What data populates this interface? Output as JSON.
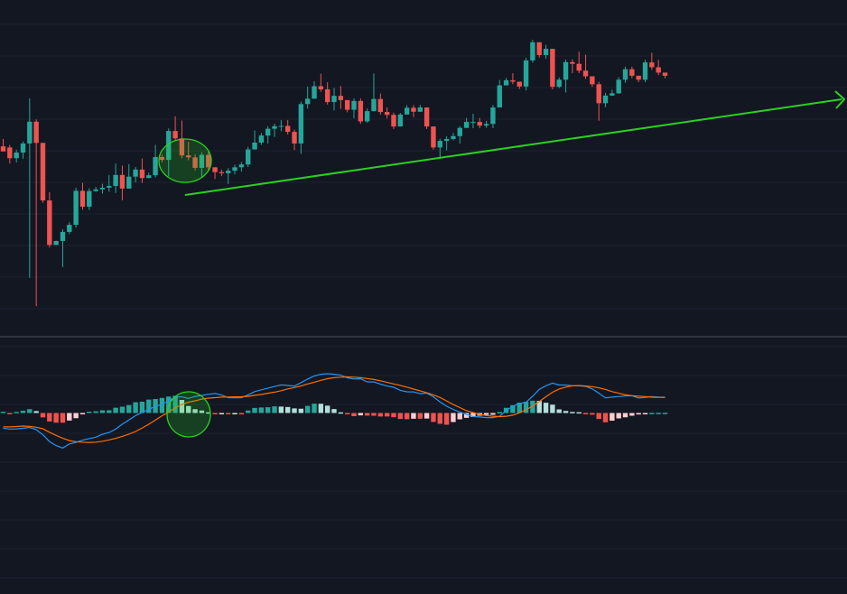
{
  "theme": {
    "background": "#131722",
    "grid": "#1e2230",
    "up": "#26a69a",
    "down": "#ef5350",
    "hist_up_strong": "#26a69a",
    "hist_up_weak": "#b2dfdb",
    "hist_down_strong": "#ef5350",
    "hist_down_weak": "#ffcdd2",
    "macd_line": "#2196f3",
    "signal_line": "#ff6d00",
    "annotation": "#2ad11f",
    "divider": "#4a4f5c"
  },
  "chart_data": [
    {
      "type": "candlestick",
      "panel": "price",
      "grid": true,
      "ylim": [
        0,
        100
      ],
      "candles": [
        [
          57.3,
          55.5,
          59.9,
          56.9
        ],
        [
          56.9,
          53.1,
          57.8,
          51.2
        ],
        [
          53.1,
          55.1,
          56.1,
          51.6
        ],
        [
          55.1,
          58.3,
          59.0,
          52.9
        ],
        [
          58.3,
          66.0,
          74.2,
          10.9
        ],
        [
          66.0,
          58.5,
          66.8,
          0.9
        ],
        [
          58.5,
          38.2,
          40.0,
          37.4
        ],
        [
          38.2,
          22.5,
          41.1,
          21.6
        ],
        [
          22.5,
          23.9,
          24.0,
          23.0
        ],
        [
          23.9,
          27.1,
          28.0,
          14.7
        ],
        [
          27.1,
          29.6,
          30.5,
          26.3
        ],
        [
          29.6,
          41.6,
          42.7,
          28.6
        ],
        [
          41.6,
          36.0,
          44.4,
          34.9
        ],
        [
          36.0,
          41.5,
          42.5,
          34.9
        ],
        [
          41.5,
          42.1,
          43.0,
          41.2
        ],
        [
          42.1,
          42.7,
          44.1,
          40.6
        ],
        [
          42.7,
          43.3,
          47.2,
          41.3
        ],
        [
          43.3,
          47.2,
          51.2,
          40.8
        ],
        [
          47.2,
          42.4,
          50.5,
          38.3
        ],
        [
          42.4,
          46.6,
          51.0,
          45.7
        ],
        [
          46.6,
          49.1,
          50.0,
          44.6
        ],
        [
          49.1,
          46.1,
          53.0,
          44.4
        ],
        [
          46.1,
          47.1,
          48.0,
          46.2
        ],
        [
          47.1,
          53.5,
          57.8,
          46.3
        ],
        [
          53.5,
          52.5,
          54.4,
          51.6
        ],
        [
          52.5,
          62.7,
          63.6,
          46.7
        ],
        [
          62.7,
          60.1,
          67.9,
          59.1
        ],
        [
          60.1,
          54.1,
          66.4,
          53.1
        ],
        [
          54.1,
          53.4,
          58.9,
          52.4
        ],
        [
          53.4,
          49.7,
          54.5,
          48.8
        ],
        [
          49.7,
          54.3,
          55.2,
          46.4
        ],
        [
          54.3,
          49.9,
          55.4,
          48.7
        ],
        [
          49.9,
          48.2,
          49.1,
          45.8
        ],
        [
          48.2,
          47.8,
          49.1,
          46.8
        ],
        [
          47.8,
          48.7,
          49.6,
          44.0
        ],
        [
          48.7,
          49.9,
          50.8,
          47.4
        ],
        [
          49.9,
          50.9,
          51.8,
          48.4
        ],
        [
          50.9,
          56.2,
          57.1,
          50.0
        ],
        [
          56.2,
          58.6,
          62.9,
          57.4
        ],
        [
          58.6,
          61.1,
          62.0,
          57.8
        ],
        [
          61.1,
          63.5,
          64.4,
          58.3
        ],
        [
          63.5,
          64.4,
          65.3,
          60.6
        ],
        [
          64.4,
          64.5,
          66.6,
          62.6
        ],
        [
          64.5,
          62.4,
          66.6,
          61.5
        ],
        [
          62.4,
          58.3,
          63.2,
          56.0
        ],
        [
          58.3,
          72.2,
          73.1,
          54.6
        ],
        [
          72.2,
          74.1,
          78.4,
          70.6
        ],
        [
          74.1,
          78.5,
          80.2,
          77.3
        ],
        [
          78.5,
          77.4,
          82.9,
          76.5
        ],
        [
          77.4,
          72.9,
          79.9,
          72.0
        ],
        [
          72.9,
          75.1,
          77.9,
          70.0
        ],
        [
          75.1,
          73.6,
          78.6,
          70.5
        ],
        [
          73.6,
          70.2,
          73.6,
          69.3
        ],
        [
          70.2,
          73.3,
          74.2,
          67.2
        ],
        [
          73.3,
          66.1,
          74.2,
          65.2
        ],
        [
          66.1,
          69.7,
          70.6,
          65.6
        ],
        [
          69.7,
          74.0,
          83.0,
          69.6
        ],
        [
          74.0,
          69.4,
          75.9,
          68.5
        ],
        [
          69.4,
          68.4,
          71.0,
          67.1
        ],
        [
          68.4,
          64.3,
          69.2,
          63.4
        ],
        [
          64.3,
          68.5,
          69.1,
          67.7
        ],
        [
          68.5,
          70.9,
          71.8,
          69.7
        ],
        [
          70.9,
          69.5,
          71.8,
          67.6
        ],
        [
          69.5,
          71.0,
          71.9,
          70.1
        ],
        [
          71.0,
          64.3,
          71.0,
          63.4
        ],
        [
          64.3,
          56.9,
          58.0,
          56.1
        ],
        [
          56.9,
          59.2,
          60.0,
          53.1
        ],
        [
          59.2,
          59.9,
          60.8,
          55.9
        ],
        [
          59.9,
          60.9,
          62.0,
          59.4
        ],
        [
          60.9,
          63.8,
          64.4,
          58.3
        ],
        [
          63.8,
          65.9,
          67.3,
          65.3
        ],
        [
          65.9,
          65.9,
          68.8,
          63.7
        ],
        [
          65.9,
          64.6,
          67.3,
          63.7
        ],
        [
          64.6,
          65.2,
          66.3,
          63.8
        ],
        [
          65.2,
          71.0,
          71.9,
          63.7
        ],
        [
          71.0,
          78.8,
          80.7,
          71.1
        ],
        [
          78.8,
          80.6,
          81.4,
          79.2
        ],
        [
          80.6,
          80.1,
          83.1,
          79.2
        ],
        [
          80.1,
          78.4,
          79.3,
          77.5
        ],
        [
          78.4,
          87.6,
          88.5,
          77.0
        ],
        [
          87.6,
          94.0,
          94.9,
          86.8
        ],
        [
          94.0,
          89.5,
          93.0,
          88.6
        ],
        [
          89.5,
          91.7,
          93.1,
          88.2
        ],
        [
          91.7,
          78.3,
          79.2,
          77.4
        ],
        [
          78.3,
          80.8,
          81.6,
          77.8
        ],
        [
          80.8,
          87.0,
          87.9,
          76.3
        ],
        [
          87.0,
          86.4,
          88.0,
          83.1
        ],
        [
          86.4,
          84.0,
          90.7,
          83.1
        ],
        [
          84.0,
          82.0,
          89.6,
          81.1
        ],
        [
          82.0,
          79.2,
          80.1,
          78.3
        ],
        [
          79.2,
          72.5,
          80.1,
          66.3
        ],
        [
          72.5,
          75.2,
          76.1,
          71.1
        ],
        [
          75.2,
          76.0,
          77.3,
          75.1
        ],
        [
          76.0,
          80.8,
          81.7,
          75.8
        ],
        [
          80.8,
          84.5,
          85.4,
          79.7
        ],
        [
          84.5,
          82.2,
          85.4,
          81.3
        ],
        [
          82.2,
          80.8,
          80.7,
          79.9
        ],
        [
          80.8,
          86.9,
          87.8,
          79.9
        ],
        [
          86.9,
          85.2,
          90.3,
          84.3
        ],
        [
          85.2,
          83.3,
          87.8,
          82.4
        ],
        [
          83.3,
          82.2,
          83.1,
          81.3
        ]
      ]
    },
    {
      "type": "macd",
      "panel": "indicator",
      "grid": true,
      "ylim": [
        -50,
        50
      ],
      "macd": [
        -13.5,
        -14.2,
        -14.1,
        -13.5,
        -12.8,
        -14.7,
        -19.3,
        -25.3,
        -28.9,
        -31.0,
        -27.4,
        -26.1,
        -24.1,
        -22.6,
        -21.4,
        -18.8,
        -17.3,
        -14.3,
        -9.9,
        -6.1,
        -2.3,
        0.6,
        3.1,
        5.9,
        7.6,
        10.8,
        14.1,
        14.3,
        13.0,
        14.7,
        15.6,
        16.6,
        17.3,
        15.9,
        13.6,
        13.5,
        13.6,
        16.1,
        19.0,
        20.6,
        21.9,
        23.5,
        24.9,
        24.4,
        23.9,
        27.0,
        30.1,
        32.8,
        34.3,
        34.8,
        34.3,
        33.6,
        31.2,
        30.2,
        30.3,
        27.6,
        27.5,
        25.6,
        23.9,
        22.8,
        20.1,
        18.8,
        18.7,
        17.1,
        17.6,
        14.4,
        9.8,
        6.0,
        3.1,
        0.8,
        -1.3,
        -3.1,
        -3.5,
        -4.1,
        -4.1,
        -2.9,
        2.2,
        6.0,
        8.3,
        9.5,
        14.8,
        21.0,
        24.2,
        26.5,
        24.8,
        24.8,
        24.2,
        24.1,
        23.6,
        21.4,
        17.6,
        13.4,
        14.1,
        14.6,
        15.2,
        15.3,
        13.3,
        13.8,
        14.6,
        14.1,
        14.0
      ],
      "signal": [
        -12.2,
        -12.3,
        -12.0,
        -11.6,
        -11.8,
        -12.6,
        -14.0,
        -17.0,
        -19.8,
        -22.3,
        -24.4,
        -25.5,
        -25.8,
        -26.1,
        -25.8,
        -25.0,
        -23.8,
        -22.5,
        -20.7,
        -18.7,
        -16.4,
        -13.3,
        -9.9,
        -6.3,
        -2.5,
        1.0,
        4.6,
        7.6,
        9.6,
        10.8,
        12.3,
        13.2,
        13.6,
        14.1,
        14.2,
        14.3,
        14.4,
        14.7,
        15.7,
        16.4,
        17.5,
        18.5,
        19.8,
        21.4,
        22.6,
        24.0,
        25.8,
        27.3,
        29.0,
        30.4,
        31.3,
        31.8,
        32.0,
        31.8,
        31.3,
        30.6,
        29.7,
        28.6,
        27.1,
        25.8,
        24.5,
        23.0,
        21.2,
        19.7,
        17.9,
        16.1,
        13.8,
        10.7,
        7.5,
        4.8,
        2.1,
        0.4,
        -1.2,
        -2.2,
        -2.9,
        -3.2,
        -2.9,
        -1.9,
        0.2,
        2.9,
        6.1,
        10.2,
        14.4,
        18.4,
        21.3,
        23.0,
        24.1,
        24.3,
        23.9,
        23.4,
        22.3,
        20.9,
        19.0,
        17.5,
        16.2,
        15.4,
        14.9,
        14.6,
        14.0,
        13.9,
        13.8
      ],
      "hist": [
        1.1,
        -1.1,
        0.9,
        2.0,
        3.4,
        1.7,
        -3.9,
        -7.5,
        -8.6,
        -8.6,
        -6.7,
        -4.6,
        -1.0,
        1.2,
        1.5,
        2.4,
        2.4,
        4.7,
        5.6,
        7.0,
        9.5,
        10.0,
        11.9,
        12.4,
        13.4,
        14.6,
        15.3,
        11.6,
        6.2,
        3.4,
        2.2,
        0.6,
        -1.1,
        -0.9,
        -1.1,
        -0.9,
        -1.3,
        2.2,
        4.5,
        4.9,
        5.1,
        5.9,
        5.7,
        5.3,
        4.1,
        3.8,
        6.3,
        8.3,
        8.2,
        6.5,
        3.5,
        0.6,
        -0.7,
        -2.8,
        -2.1,
        -2.3,
        -2.4,
        -3.1,
        -3.1,
        -3.7,
        -5.3,
        -5.5,
        -5.1,
        -5.1,
        -4.9,
        -7.9,
        -9.6,
        -10.4,
        -8.0,
        -5.6,
        -4.3,
        -3.6,
        -2.4,
        -1.7,
        -1.6,
        0.8,
        4.6,
        6.9,
        9.2,
        9.9,
        10.9,
        10.8,
        9.1,
        7.4,
        3.2,
        1.8,
        0.9,
        0.7,
        -0.1,
        -1.5,
        -5.3,
        -8.2,
        -6.8,
        -4.8,
        -3.8,
        -2.4,
        -1.3,
        -0.2,
        0.1,
        0.2,
        0.2
      ]
    }
  ],
  "annotations": {
    "trendline_color": "#2ad11f"
  }
}
